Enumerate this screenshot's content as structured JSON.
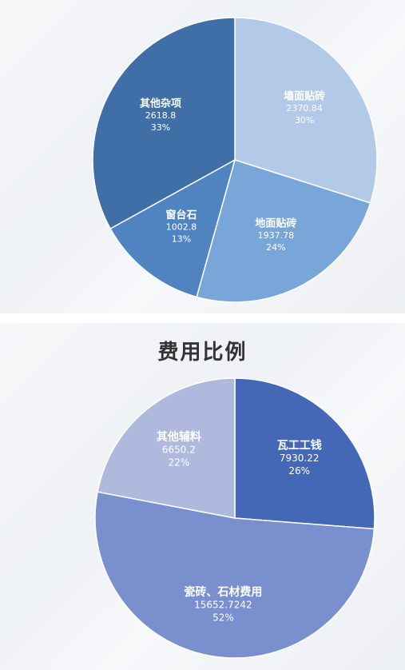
{
  "chart_data": [
    {
      "type": "pie",
      "title": "",
      "slices": [
        {
          "label": "墙面贴砖",
          "value_text": "2370.84",
          "value": 2370.84,
          "pct_text": "30%",
          "color": "#b3c9e8"
        },
        {
          "label": "地面贴砖",
          "value_text": "1937.78",
          "value": 1937.78,
          "pct_text": "24%",
          "color": "#78a6d9"
        },
        {
          "label": "窗台石",
          "value_text": "1002.8",
          "value": 1002.8,
          "pct_text": "13%",
          "color": "#4f84c1"
        },
        {
          "label": "其他杂项",
          "value_text": "2618.8",
          "value": 2618.8,
          "pct_text": "33%",
          "color": "#3f6fa6"
        }
      ]
    },
    {
      "type": "pie",
      "title": "费用比例",
      "slices": [
        {
          "label": "瓦工工钱",
          "value_text": "7930.22",
          "value": 7930.22,
          "pct_text": "26%",
          "color": "#4468b6"
        },
        {
          "label": "瓷砖、石材费用",
          "value_text": "15652.7242",
          "value": 15652.7242,
          "pct_text": "52%",
          "color": "#7a90ce"
        },
        {
          "label": "其他辅料",
          "value_text": "6650.2",
          "value": 6650.2,
          "pct_text": "22%",
          "color": "#aeb9dd"
        }
      ]
    }
  ]
}
